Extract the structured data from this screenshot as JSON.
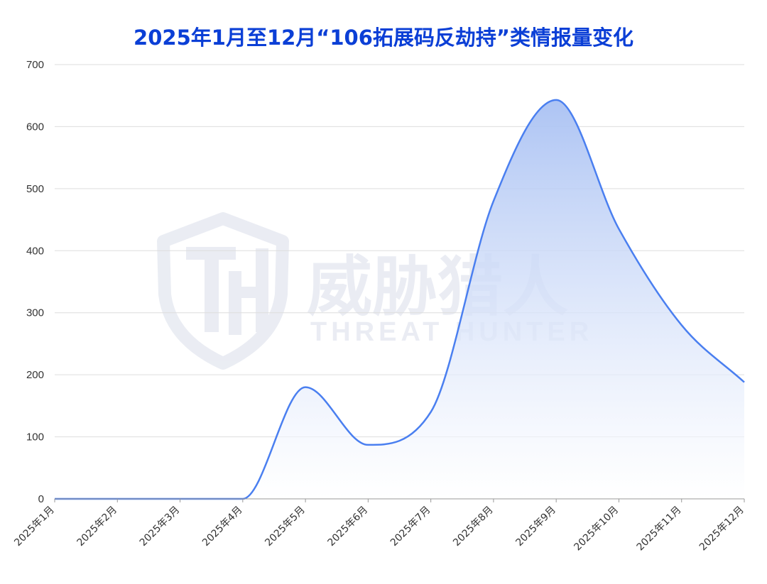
{
  "colors": {
    "title": "#0b3fd6",
    "line": "#4a7ff0",
    "fill_top": "#a9c1f3",
    "grid": "#dddddd",
    "axis": "#999999",
    "watermark": "#d9deea"
  },
  "watermark": {
    "logo_icon": "shield-th-logo-icon",
    "text_cn": "威胁猎人",
    "text_en": "THREAT HUNTER"
  },
  "chart_data": {
    "type": "area",
    "title": "2025年1月至12月“106拓展码反劫持”类情报量变化",
    "xlabel": "",
    "ylabel": "",
    "categories": [
      "2025年1月",
      "2025年2月",
      "2025年3月",
      "2025年4月",
      "2025年5月",
      "2025年6月",
      "2025年7月",
      "2025年8月",
      "2025年9月",
      "2025年10月",
      "2025年11月",
      "2025年12月"
    ],
    "values": [
      0,
      0,
      0,
      0,
      180,
      87,
      140,
      480,
      643,
      435,
      280,
      188
    ],
    "yticks": [
      0,
      100,
      200,
      300,
      400,
      500,
      600,
      700
    ],
    "ylim": [
      0,
      700
    ],
    "grid": true,
    "legend": "none"
  }
}
